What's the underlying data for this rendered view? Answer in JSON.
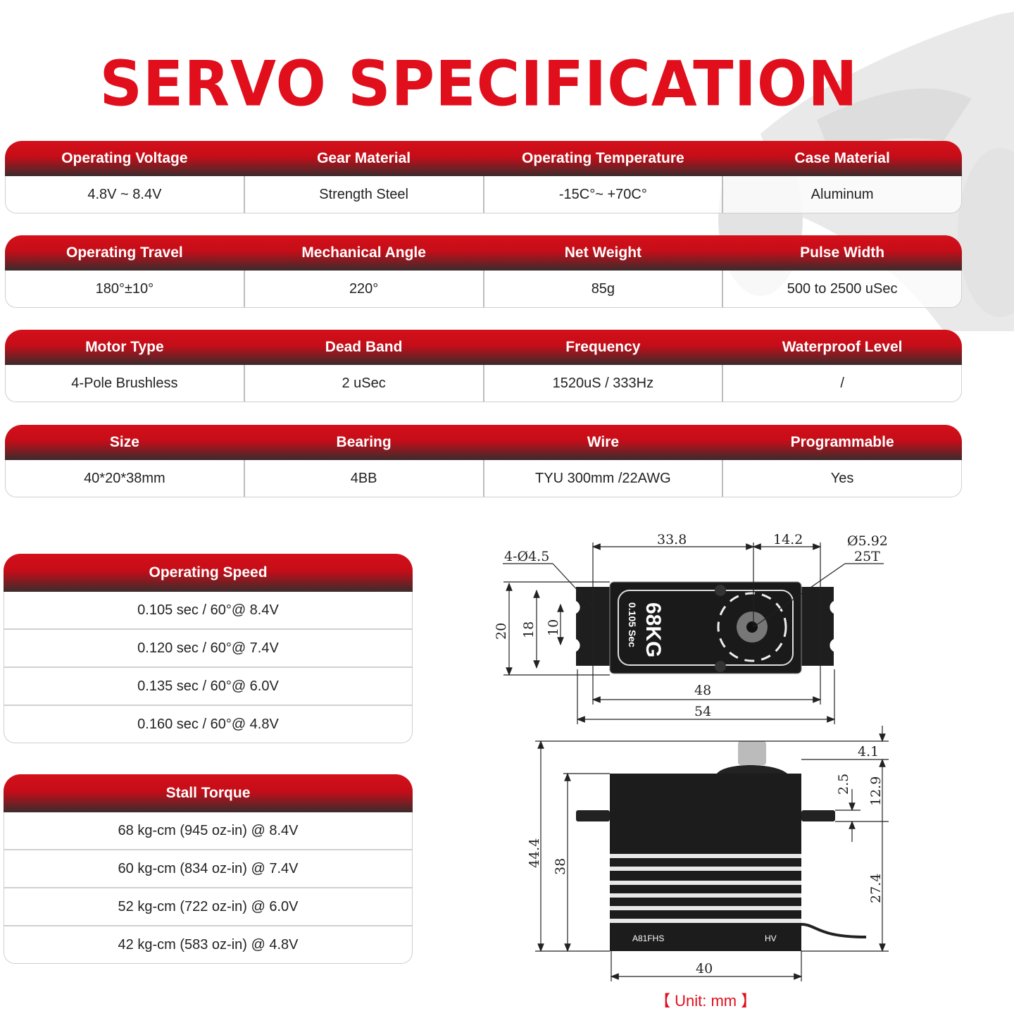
{
  "title": "SERVO SPECIFICATION",
  "spec_tables": [
    {
      "headers": [
        "Operating Voltage",
        "Gear Material",
        "Operating Temperature",
        "Case Material"
      ],
      "values": [
        "4.8V ~ 8.4V",
        "Strength Steel",
        "-15C°~ +70C°",
        "Aluminum"
      ]
    },
    {
      "headers": [
        "Operating Travel",
        "Mechanical Angle",
        "Net Weight",
        "Pulse Width"
      ],
      "values": [
        "180°±10°",
        "220°",
        "85g",
        "500 to 2500 uSec"
      ]
    },
    {
      "headers": [
        "Motor Type",
        "Dead Band",
        "Frequency",
        "Waterproof Level"
      ],
      "values": [
        "4-Pole Brushless",
        "2 uSec",
        "1520uS / 333Hz",
        "/"
      ]
    },
    {
      "headers": [
        "Size",
        "Bearing",
        "Wire",
        "Programmable"
      ],
      "values": [
        "40*20*38mm",
        "4BB",
        "TYU 300mm /22AWG",
        "Yes"
      ]
    }
  ],
  "operating_speed": {
    "title": "Operating Speed",
    "rows": [
      "0.105 sec / 60°@ 8.4V",
      "0.120 sec / 60°@ 7.4V",
      "0.135 sec / 60°@ 6.0V",
      "0.160 sec / 60°@ 4.8V"
    ]
  },
  "stall_torque": {
    "title": "Stall Torque",
    "rows": [
      "68 kg-cm (945 oz-in) @ 8.4V",
      "60 kg-cm (834 oz-in) @ 7.4V",
      "52 kg-cm (722 oz-in) @ 6.0V",
      "42 kg-cm (583 oz-in) @ 4.8V"
    ]
  },
  "drawing": {
    "top_view": {
      "d1": "33.8",
      "d2": "14.2",
      "spline": "Ø5.92",
      "spline_teeth": "25T",
      "holes": "4-Ø4.5",
      "h20": "20",
      "h18": "18",
      "h10": "10",
      "w48": "48",
      "w54": "54",
      "label_main": "68KG",
      "label_sub": "0.105 Sec"
    },
    "side_view": {
      "h44": "44.4",
      "h38": "38",
      "t41": "4.1",
      "t25": "2.5",
      "t129": "12.9",
      "t274": "27.4",
      "w40": "40",
      "model": "A81FHS",
      "hv": "HV"
    },
    "unit": "【 Unit: mm 】"
  },
  "colors": {
    "accent": "#e10e1c",
    "header_dark": "#3b2b2c"
  }
}
